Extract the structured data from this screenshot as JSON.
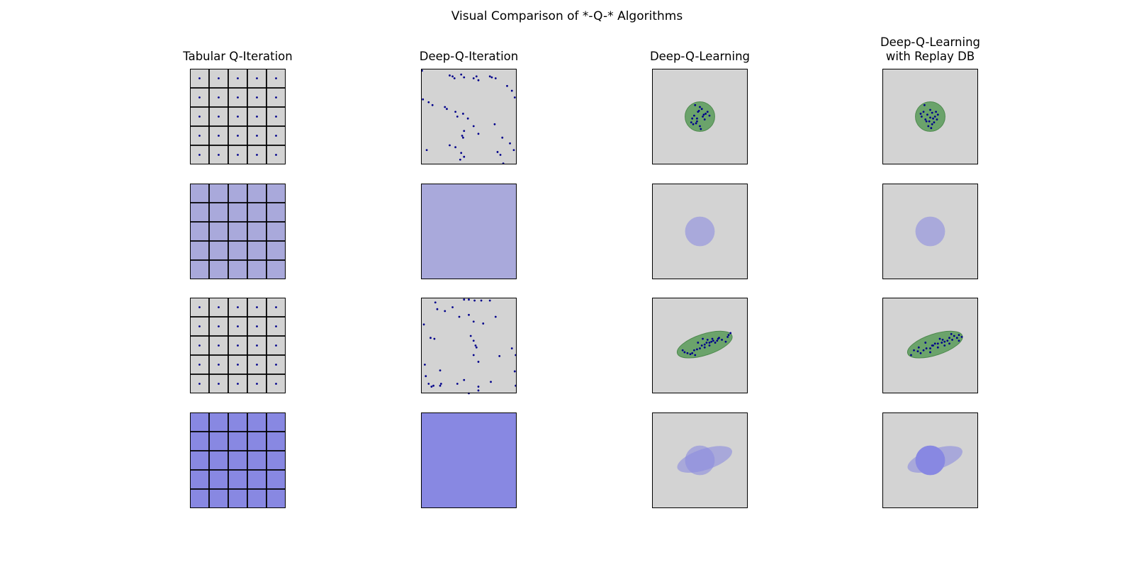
{
  "figure": {
    "title": "Visual Comparison of *-Q-* Algorithms",
    "columns": [
      {
        "title": "Tabular Q-Iteration",
        "kind": "tabular"
      },
      {
        "title": "Deep-Q-Iteration",
        "kind": "deep-iteration"
      },
      {
        "title": "Deep-Q-Learning",
        "kind": "deep-learning"
      },
      {
        "title": "Deep-Q-Learning\nwith Replay DB",
        "kind": "replay"
      }
    ],
    "rows": [
      {
        "role": "samples-circle"
      },
      {
        "role": "coverage-circle"
      },
      {
        "role": "samples-ellipse"
      },
      {
        "role": "coverage-combined"
      }
    ]
  },
  "colors": {
    "panel_background": "#d3d3d3",
    "sample_dot": "#00008b",
    "grid_line": "#000000",
    "coverage_light": "#a9a9db",
    "coverage_dark": "#8888e2",
    "region_fill": "#6ba36b",
    "region_edge": "#4e8a4e"
  },
  "chart_data": {
    "type": "scatter",
    "grid_cells": 5,
    "series": [
      {
        "name": "",
        "panel": "Tabular Q-Iteration / row 1",
        "x": [
          0.5,
          1.5,
          2.5,
          3.5,
          4.5,
          0.5,
          1.5,
          2.5,
          3.5,
          4.5,
          0.5,
          1.5,
          2.5,
          3.5,
          4.5,
          0.5,
          1.5,
          2.5,
          3.5,
          4.5,
          0.5,
          1.5,
          2.5,
          3.5,
          4.5
        ],
        "y": [
          0.5,
          0.5,
          0.5,
          0.5,
          0.5,
          1.5,
          1.5,
          1.5,
          1.5,
          1.5,
          2.5,
          2.5,
          2.5,
          2.5,
          2.5,
          3.5,
          3.5,
          3.5,
          3.5,
          3.5,
          4.5,
          4.5,
          4.5,
          4.5,
          4.5
        ]
      },
      {
        "name": "",
        "panel": "Deep-Q-Iteration / row 1",
        "x": [
          0.01,
          0.3,
          0.33,
          0.35,
          0.42,
          0.45,
          0.55,
          0.58,
          0.6,
          0.72,
          0.74,
          0.78,
          0.9,
          0.95,
          0.98,
          0.02,
          0.08,
          0.12,
          0.25,
          0.27,
          0.36,
          0.38,
          0.44,
          0.49,
          0.55,
          0.6,
          0.77,
          0.85,
          0.93,
          0.97,
          0.42,
          0.45,
          0.43,
          0.44,
          0.06,
          0.3,
          0.45,
          0.41,
          0.36,
          0.8,
          0.83,
          0.86
        ],
        "y": [
          0.02,
          0.07,
          0.08,
          0.1,
          0.06,
          0.09,
          0.1,
          0.08,
          0.12,
          0.08,
          0.09,
          0.1,
          0.18,
          0.23,
          0.3,
          0.32,
          0.35,
          0.38,
          0.4,
          0.42,
          0.45,
          0.5,
          0.47,
          0.52,
          0.6,
          0.68,
          0.58,
          0.72,
          0.78,
          0.85,
          0.88,
          0.65,
          0.7,
          0.72,
          0.85,
          0.8,
          0.92,
          0.95,
          0.82,
          0.87,
          0.9,
          0.99
        ]
      },
      {
        "name": "",
        "panel": "Deep-Q-Learning / row 1",
        "x": [
          0.45,
          0.5,
          0.52,
          0.48,
          0.56,
          0.44,
          0.42,
          0.53,
          0.47,
          0.6,
          0.46,
          0.41,
          0.5,
          0.55,
          0.49,
          0.58,
          0.43,
          0.51,
          0.54,
          0.47
        ],
        "y": [
          0.38,
          0.4,
          0.42,
          0.45,
          0.47,
          0.49,
          0.52,
          0.5,
          0.55,
          0.49,
          0.57,
          0.56,
          0.6,
          0.53,
          0.44,
          0.45,
          0.58,
          0.63,
          0.48,
          0.52
        ]
      },
      {
        "name": "",
        "panel": "Deep-Q-Learning with Replay DB / row 1",
        "x": [
          0.44,
          0.5,
          0.52,
          0.47,
          0.55,
          0.41,
          0.45,
          0.53,
          0.49,
          0.58,
          0.43,
          0.52,
          0.48,
          0.56,
          0.46,
          0.5,
          0.54,
          0.4,
          0.57,
          0.51
        ],
        "y": [
          0.38,
          0.43,
          0.46,
          0.48,
          0.5,
          0.5,
          0.53,
          0.52,
          0.55,
          0.48,
          0.45,
          0.58,
          0.6,
          0.45,
          0.55,
          0.51,
          0.56,
          0.47,
          0.53,
          0.62
        ]
      },
      {
        "name": "",
        "panel": "Tabular Q-Iteration / row 3",
        "x": [
          0.5,
          1.5,
          2.5,
          3.5,
          4.5,
          0.5,
          1.5,
          2.5,
          3.5,
          4.5,
          0.5,
          1.5,
          2.5,
          3.5,
          4.5,
          0.5,
          1.5,
          2.5,
          3.5,
          4.5,
          0.5,
          1.5,
          2.5,
          3.5,
          4.5
        ],
        "y": [
          0.5,
          0.5,
          0.5,
          0.5,
          0.5,
          1.5,
          1.5,
          1.5,
          1.5,
          1.5,
          2.5,
          2.5,
          2.5,
          2.5,
          2.5,
          3.5,
          3.5,
          3.5,
          3.5,
          3.5,
          4.5,
          4.5,
          4.5,
          4.5,
          4.5
        ]
      },
      {
        "name": "",
        "panel": "Deep-Q-Iteration / row 3",
        "x": [
          0.15,
          0.45,
          0.5,
          0.56,
          0.63,
          0.72,
          0.17,
          0.25,
          0.33,
          0.4,
          0.5,
          0.55,
          0.65,
          0.78,
          0.03,
          0.1,
          0.14,
          0.52,
          0.55,
          0.57,
          0.58,
          0.55,
          0.04,
          0.6,
          0.82,
          0.95,
          0.99,
          0.2,
          0.05,
          0.08,
          0.11,
          0.13,
          0.2,
          0.21,
          0.38,
          0.45,
          0.6,
          0.73,
          0.99,
          0.98,
          0.6,
          0.5
        ],
        "y": [
          0.05,
          0.02,
          0.02,
          0.03,
          0.03,
          0.03,
          0.12,
          0.14,
          0.1,
          0.2,
          0.18,
          0.25,
          0.27,
          0.2,
          0.28,
          0.42,
          0.43,
          0.4,
          0.45,
          0.5,
          0.52,
          0.6,
          0.7,
          0.67,
          0.61,
          0.53,
          0.6,
          0.76,
          0.82,
          0.9,
          0.93,
          0.92,
          0.92,
          0.9,
          0.9,
          0.86,
          0.93,
          0.88,
          0.92,
          0.77,
          0.97,
          1.0
        ]
      },
      {
        "name": "",
        "panel": "Deep-Q-Learning / row 3",
        "x": [
          0.32,
          0.34,
          0.37,
          0.4,
          0.42,
          0.45,
          0.47,
          0.5,
          0.52,
          0.55,
          0.57,
          0.6,
          0.62,
          0.64,
          0.66,
          0.68,
          0.7,
          0.48,
          0.53,
          0.58,
          0.63,
          0.69,
          0.73,
          0.79,
          0.44,
          0.55,
          0.6,
          0.77,
          0.8,
          0.82
        ],
        "y": [
          0.55,
          0.57,
          0.58,
          0.59,
          0.58,
          0.6,
          0.54,
          0.53,
          0.5,
          0.49,
          0.47,
          0.5,
          0.46,
          0.45,
          0.47,
          0.45,
          0.42,
          0.47,
          0.43,
          0.44,
          0.43,
          0.43,
          0.44,
          0.41,
          0.55,
          0.52,
          0.47,
          0.46,
          0.39,
          0.37
        ]
      },
      {
        "name": "",
        "panel": "Deep-Q-Learning with Replay DB / row 3",
        "x": [
          0.3,
          0.33,
          0.37,
          0.4,
          0.43,
          0.46,
          0.5,
          0.52,
          0.55,
          0.58,
          0.62,
          0.65,
          0.68,
          0.7,
          0.73,
          0.75,
          0.78,
          0.8,
          0.83,
          0.5,
          0.6,
          0.65,
          0.7,
          0.53,
          0.38,
          0.45,
          0.58,
          0.63,
          0.72,
          0.8
        ],
        "y": [
          0.6,
          0.55,
          0.56,
          0.58,
          0.55,
          0.53,
          0.57,
          0.5,
          0.48,
          0.48,
          0.47,
          0.5,
          0.45,
          0.42,
          0.44,
          0.4,
          0.42,
          0.39,
          0.41,
          0.53,
          0.43,
          0.46,
          0.48,
          0.5,
          0.52,
          0.47,
          0.52,
          0.44,
          0.38,
          0.45
        ]
      }
    ]
  }
}
